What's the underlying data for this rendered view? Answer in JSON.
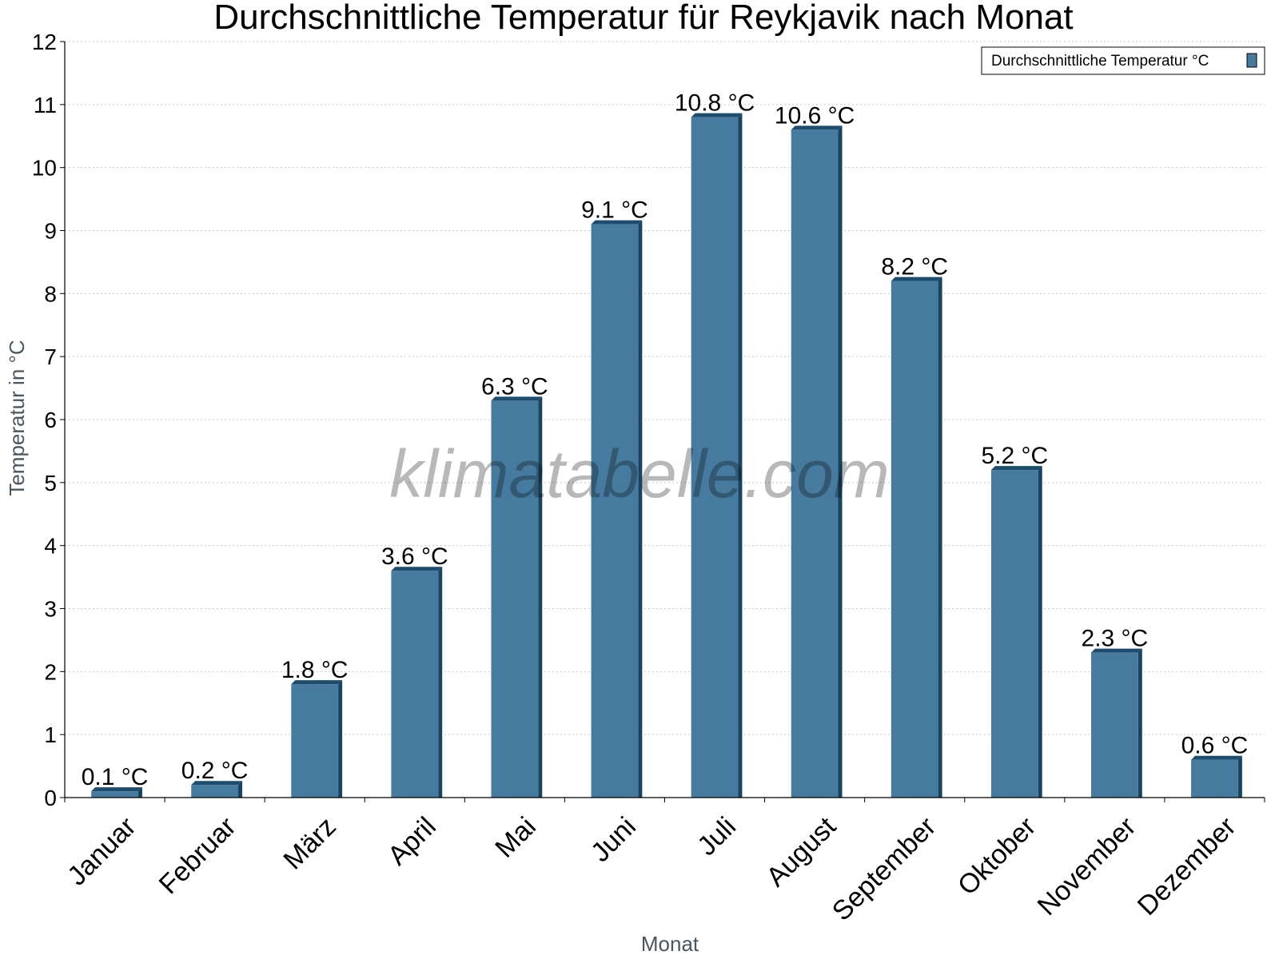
{
  "chart_data": {
    "type": "bar",
    "title": "Durchschnittliche Temperatur für Reykjavik nach Monat",
    "xlabel": "Monat",
    "ylabel": "Temperatur in °C",
    "ylim": [
      0,
      12
    ],
    "yticks": [
      "0",
      "1",
      "2",
      "3",
      "4",
      "5",
      "6",
      "7",
      "8",
      "9",
      "10",
      "11",
      "12"
    ],
    "grid": true,
    "legend_position": "top-right",
    "categories": [
      "Januar",
      "Februar",
      "März",
      "April",
      "Mai",
      "Juni",
      "Juli",
      "August",
      "September",
      "Oktober",
      "November",
      "Dezember"
    ],
    "series": [
      {
        "name": "Durchschnittliche Temperatur °C",
        "color": "#467b9f",
        "values": [
          0.1,
          0.2,
          1.8,
          3.6,
          6.3,
          9.1,
          10.8,
          10.6,
          8.2,
          5.2,
          2.3,
          0.6
        ],
        "labels": [
          "0.1 °C",
          "0.2 °C",
          "1.8 °C",
          "3.6 °C",
          "6.3 °C",
          "9.1 °C",
          "10.8 °C",
          "10.6 °C",
          "8.2 °C",
          "5.2 °C",
          "2.3 °C",
          "0.6 °C"
        ]
      }
    ],
    "watermark": "klimatabelle.com"
  }
}
